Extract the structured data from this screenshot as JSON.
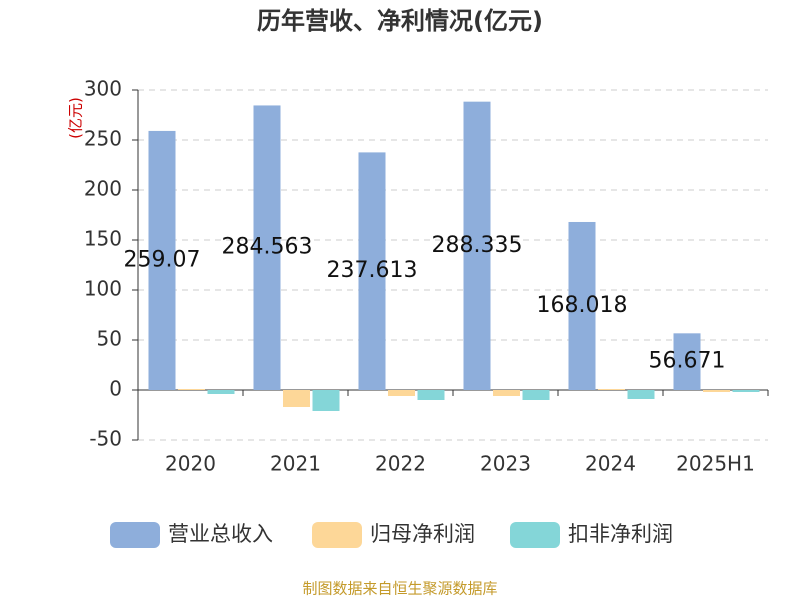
{
  "chart_data": {
    "type": "bar",
    "title": "历年营收、净利情况(亿元)",
    "y_label": "(亿元)",
    "categories": [
      "2020",
      "2021",
      "2022",
      "2023",
      "2024",
      "2025H1"
    ],
    "series": [
      {
        "name": "营业总收入",
        "color": "#8eaedb",
        "values": [
          259.07,
          284.563,
          237.613,
          288.335,
          168.018,
          56.671
        ],
        "show_labels": true
      },
      {
        "name": "归母净利润",
        "color": "#fdd798",
        "values": [
          1,
          -17,
          -6,
          -6,
          1,
          -2
        ]
      },
      {
        "name": "扣非净利润",
        "color": "#84d6d8",
        "values": [
          -4,
          -21,
          -10,
          -10,
          -9,
          -2
        ]
      }
    ],
    "ylim": [
      -50,
      300
    ],
    "yticks": [
      -50,
      0,
      50,
      100,
      150,
      200,
      250,
      300
    ],
    "grid": true,
    "source": "制图数据来自恒生聚源数据库"
  }
}
